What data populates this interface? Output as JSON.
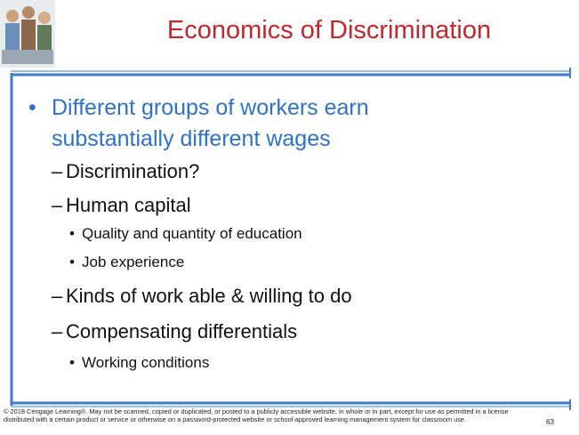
{
  "header": {
    "title": "Economics of Discrimination"
  },
  "bullets": [
    {
      "level": 1,
      "text": "Different groups of workers earn substantially different wages"
    },
    {
      "level": 2,
      "text": "Discrimination?"
    },
    {
      "level": 2,
      "text": "Human capital"
    },
    {
      "level": 3,
      "text": "Quality and quantity of education"
    },
    {
      "level": 3,
      "text": "Job experience"
    },
    {
      "level": 2,
      "text": "Kinds of work able & willing to do"
    },
    {
      "level": 2,
      "text": "Compensating differentials"
    },
    {
      "level": 3,
      "text": "Working conditions"
    }
  ],
  "footer": {
    "copyright": "© 2018 Cengage Learning®. May not be scanned, copied or duplicated, or posted to a publicly accessible website, in whole or in part, except for use as permitted in a license distributed with a certain product or service or otherwise on a password-protected website or school-approved learning management system for classroom use.",
    "page": "63"
  }
}
